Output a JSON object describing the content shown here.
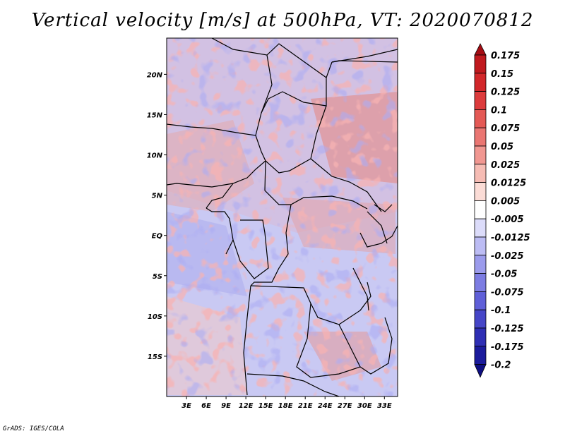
{
  "title": "Vertical velocity [m/s] at 500hPa, VT: 2020070812",
  "footer": "GrADS: IGES/COLA",
  "chart_data": {
    "type": "heatmap",
    "title": "Vertical velocity [m/s] at 500hPa, VT: 2020070812",
    "variable": "Vertical velocity",
    "units": "m/s",
    "level": "500hPa",
    "valid_time": "2020070812",
    "xlim": [
      0,
      35
    ],
    "ylim": [
      -20,
      24.5
    ],
    "x_ticks": [
      {
        "value": 3,
        "label": "3E"
      },
      {
        "value": 6,
        "label": "6E"
      },
      {
        "value": 9,
        "label": "9E"
      },
      {
        "value": 12,
        "label": "12E"
      },
      {
        "value": 15,
        "label": "15E"
      },
      {
        "value": 18,
        "label": "18E"
      },
      {
        "value": 21,
        "label": "21E"
      },
      {
        "value": 24,
        "label": "24E"
      },
      {
        "value": 27,
        "label": "27E"
      },
      {
        "value": 30,
        "label": "30E"
      },
      {
        "value": 33,
        "label": "33E"
      }
    ],
    "y_ticks": [
      {
        "value": 20,
        "label": "20N"
      },
      {
        "value": 15,
        "label": "15N"
      },
      {
        "value": 10,
        "label": "10N"
      },
      {
        "value": 5,
        "label": "5N"
      },
      {
        "value": 0,
        "label": "EQ"
      },
      {
        "value": -5,
        "label": "5S"
      },
      {
        "value": -10,
        "label": "10S"
      },
      {
        "value": -15,
        "label": "15S"
      }
    ],
    "colorbar": {
      "labels": [
        "0.175",
        "0.15",
        "0.125",
        "0.1",
        "0.075",
        "0.05",
        "0.025",
        "0.0125",
        "0.005",
        "-0.005",
        "-0.0125",
        "-0.025",
        "-0.05",
        "-0.075",
        "-0.1",
        "-0.125",
        "-0.175",
        "-0.2"
      ],
      "colors": [
        "#a50d14",
        "#c0191e",
        "#d2272a",
        "#dd3b3c",
        "#e45955",
        "#ea7672",
        "#f19791",
        "#f6bcb4",
        "#fbdcd6",
        "#ffffff",
        "#dcdcfa",
        "#bcbcf4",
        "#9b9bec",
        "#7c7ce2",
        "#5f5fd8",
        "#4646c8",
        "#2e2eb4",
        "#1b1b9c",
        "#0e0e82"
      ]
    }
  }
}
